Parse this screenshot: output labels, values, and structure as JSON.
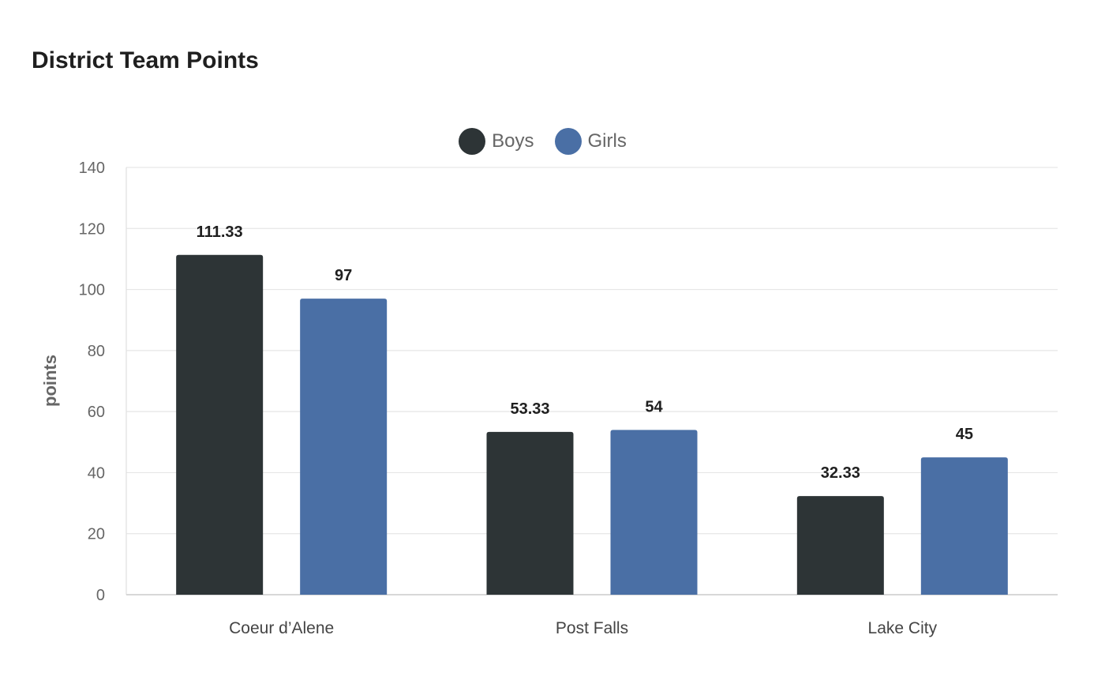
{
  "chart_data": {
    "type": "bar",
    "title": "District Team Points",
    "ylabel": "points",
    "xlabel": "",
    "categories": [
      "Coeur d’Alene",
      "Post Falls",
      "Lake City"
    ],
    "series": [
      {
        "name": "Boys",
        "color": "#2d3436",
        "values": [
          111.33,
          53.33,
          32.33
        ],
        "labels": [
          "111.33",
          "53.33",
          "32.33"
        ]
      },
      {
        "name": "Girls",
        "color": "#4a6fa5",
        "values": [
          97,
          54,
          45
        ],
        "labels": [
          "97",
          "54",
          "45"
        ]
      }
    ],
    "ylim": [
      0,
      140
    ],
    "yticks": [
      0,
      20,
      40,
      60,
      80,
      100,
      120,
      140
    ],
    "grid": true,
    "legend_position": "top-center"
  }
}
